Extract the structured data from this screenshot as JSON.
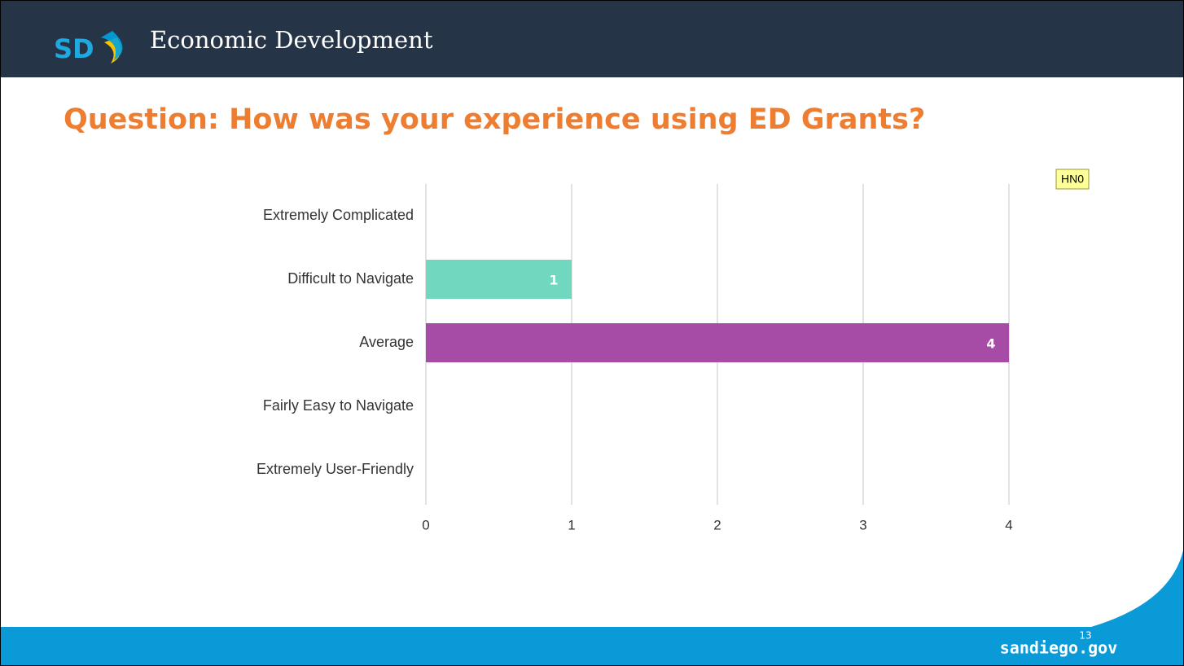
{
  "header": {
    "logo": "SD",
    "title": "Economic Development"
  },
  "chart_data": {
    "type": "barh",
    "title": "Question: How was your experience using ED Grants?",
    "categories": [
      "Extremely Complicated",
      "Difficult to Navigate",
      "Average",
      "Fairly Easy to Navigate",
      "Extremely User-Friendly"
    ],
    "values": [
      0,
      1,
      4,
      0,
      0
    ],
    "colors": [
      null,
      "#6fd8bf",
      "#a64ca6",
      null,
      null
    ],
    "xlim": [
      0,
      4
    ],
    "xticks": [
      0,
      1,
      2,
      3,
      4
    ],
    "grid": true,
    "annotation": "HN0"
  },
  "footer": {
    "site": "sandiego.gov",
    "page": "13"
  }
}
